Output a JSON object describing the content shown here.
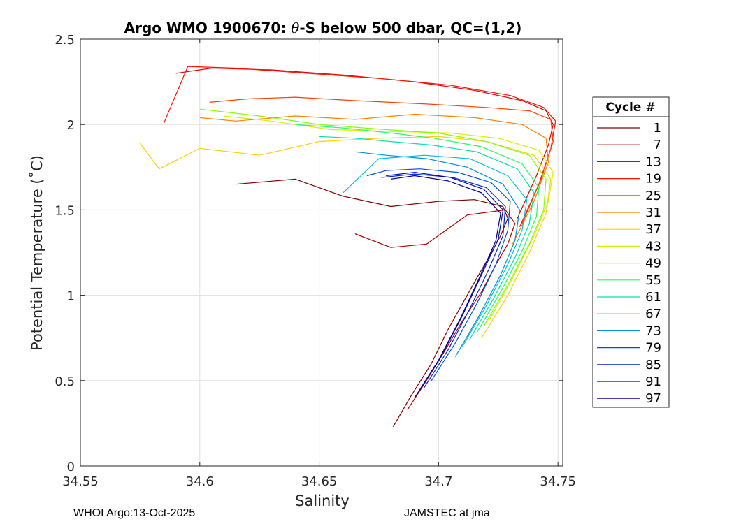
{
  "chart_data": {
    "type": "line",
    "title_pre": "Argo WMO 1900670: ",
    "title_theta": "θ",
    "title_post": "-S below 500 dbar,  QC=(1,2)",
    "xlabel": "Salinity",
    "ylabel": "Potential Temperature (˚C)",
    "xlim": [
      34.55,
      34.752
    ],
    "ylim": [
      0,
      2.5
    ],
    "xticks": [
      34.55,
      34.6,
      34.65,
      34.7,
      34.75
    ],
    "xtick_labels": [
      "34.55",
      "34.6",
      "34.65",
      "34.7",
      "34.75"
    ],
    "yticks": [
      0,
      0.5,
      1,
      1.5,
      2,
      2.5
    ],
    "ytick_labels": [
      "0",
      "0.5",
      "1",
      "1.5",
      "2",
      "2.5"
    ],
    "grid": true,
    "legend_title": "Cycle #",
    "legend_position": "right",
    "series": [
      {
        "name": "1",
        "color": "#800000",
        "salinity": [
          34.681,
          34.688,
          34.697,
          34.704,
          34.71,
          34.716,
          34.721,
          34.726,
          34.729,
          34.727,
          34.715,
          34.7,
          34.68,
          34.66,
          34.64,
          34.615
        ],
        "theta": [
          0.23,
          0.4,
          0.6,
          0.8,
          0.95,
          1.1,
          1.22,
          1.35,
          1.45,
          1.52,
          1.56,
          1.55,
          1.52,
          1.58,
          1.68,
          1.65
        ]
      },
      {
        "name": "7",
        "color": "#B00000",
        "salinity": [
          34.687,
          34.694,
          34.702,
          34.71,
          34.718,
          34.724,
          34.729,
          34.732,
          34.728,
          34.712,
          34.695,
          34.68,
          34.665
        ],
        "theta": [
          0.33,
          0.48,
          0.66,
          0.85,
          1.02,
          1.18,
          1.3,
          1.42,
          1.5,
          1.47,
          1.3,
          1.28,
          1.36
        ]
      },
      {
        "name": "13",
        "color": "#E00000",
        "salinity": [
          34.733,
          34.741,
          34.746,
          34.748,
          34.745,
          34.735,
          34.715,
          34.69,
          34.66,
          34.63,
          34.605,
          34.59
        ],
        "theta": [
          1.45,
          1.7,
          1.88,
          2.0,
          2.08,
          2.14,
          2.2,
          2.25,
          2.29,
          2.32,
          2.33,
          2.3
        ]
      },
      {
        "name": "19",
        "color": "#FF1000",
        "salinity": [
          34.734,
          34.742,
          34.747,
          34.749,
          34.744,
          34.73,
          34.705,
          34.675,
          34.645,
          34.615,
          34.595,
          34.585
        ],
        "theta": [
          1.4,
          1.65,
          1.86,
          2.02,
          2.1,
          2.17,
          2.23,
          2.27,
          2.3,
          2.33,
          2.34,
          2.01
        ]
      },
      {
        "name": "25",
        "color": "#FF4000",
        "salinity": [
          34.735,
          34.743,
          34.748,
          34.747,
          34.738,
          34.72,
          34.695,
          34.665,
          34.64,
          34.62,
          34.604
        ],
        "theta": [
          1.42,
          1.68,
          1.9,
          2.03,
          2.08,
          2.1,
          2.12,
          2.14,
          2.16,
          2.15,
          2.13
        ]
      },
      {
        "name": "31",
        "color": "#FF8000",
        "salinity": [
          34.731,
          34.74,
          34.746,
          34.745,
          34.735,
          34.715,
          34.69,
          34.665,
          34.64,
          34.615,
          34.6
        ],
        "theta": [
          1.3,
          1.55,
          1.78,
          1.92,
          2.0,
          2.04,
          2.06,
          2.03,
          2.05,
          2.02,
          2.04
        ]
      },
      {
        "name": "37",
        "color": "#FFD000",
        "salinity": [
          34.718,
          34.729,
          34.738,
          34.745,
          34.747,
          34.74,
          34.72,
          34.7,
          34.675,
          34.65,
          34.625,
          34.6,
          34.583,
          34.575
        ],
        "theta": [
          0.75,
          1.0,
          1.25,
          1.48,
          1.68,
          1.82,
          1.9,
          1.93,
          1.92,
          1.9,
          1.82,
          1.86,
          1.74,
          1.89
        ]
      },
      {
        "name": "43",
        "color": "#D8F000",
        "salinity": [
          34.721,
          34.731,
          34.74,
          34.746,
          34.748,
          34.742,
          34.725,
          34.705,
          34.68,
          34.655,
          34.63,
          34.61
        ],
        "theta": [
          0.85,
          1.1,
          1.35,
          1.55,
          1.72,
          1.85,
          1.92,
          1.95,
          1.96,
          1.97,
          2.02,
          2.05
        ]
      },
      {
        "name": "49",
        "color": "#80FF00",
        "salinity": [
          34.719,
          34.729,
          34.738,
          34.744,
          34.745,
          34.738,
          34.72,
          34.7,
          34.678,
          34.65,
          34.625,
          34.6
        ],
        "theta": [
          0.82,
          1.06,
          1.3,
          1.5,
          1.68,
          1.82,
          1.9,
          1.95,
          1.97,
          2.0,
          2.05,
          2.09
        ]
      },
      {
        "name": "55",
        "color": "#20FF60",
        "salinity": [
          34.716,
          34.726,
          34.735,
          34.741,
          34.742,
          34.735,
          34.718,
          34.698,
          34.68,
          34.66,
          34.64
        ],
        "theta": [
          0.78,
          1.02,
          1.26,
          1.46,
          1.63,
          1.77,
          1.87,
          1.92,
          1.95,
          1.98,
          2.0
        ]
      },
      {
        "name": "61",
        "color": "#00E0B0",
        "salinity": [
          34.713,
          34.723,
          34.732,
          34.738,
          34.74,
          34.733,
          34.716,
          34.697,
          34.68,
          34.665,
          34.65
        ],
        "theta": [
          0.74,
          0.98,
          1.22,
          1.42,
          1.6,
          1.74,
          1.84,
          1.88,
          1.9,
          1.92,
          1.93
        ]
      },
      {
        "name": "67",
        "color": "#00C0E8",
        "salinity": [
          34.71,
          34.72,
          34.729,
          34.735,
          34.737,
          34.729,
          34.713,
          34.694,
          34.675,
          34.66
        ],
        "theta": [
          0.7,
          0.94,
          1.18,
          1.38,
          1.56,
          1.7,
          1.8,
          1.82,
          1.8,
          1.6
        ]
      },
      {
        "name": "73",
        "color": "#0090D8",
        "salinity": [
          34.707,
          34.717,
          34.726,
          34.732,
          34.734,
          34.727,
          34.712,
          34.695,
          34.678,
          34.665
        ],
        "theta": [
          0.64,
          0.88,
          1.12,
          1.32,
          1.5,
          1.65,
          1.75,
          1.8,
          1.82,
          1.84
        ]
      },
      {
        "name": "79",
        "color": "#0050E0",
        "salinity": [
          34.697,
          34.707,
          34.716,
          34.724,
          34.729,
          34.73,
          34.722,
          34.708,
          34.692,
          34.678,
          34.67
        ],
        "theta": [
          0.5,
          0.72,
          0.95,
          1.18,
          1.38,
          1.55,
          1.66,
          1.72,
          1.74,
          1.73,
          1.7
        ]
      },
      {
        "name": "85",
        "color": "#0028D0",
        "salinity": [
          34.694,
          34.704,
          34.713,
          34.721,
          34.727,
          34.728,
          34.72,
          34.706,
          34.69,
          34.676
        ],
        "theta": [
          0.46,
          0.68,
          0.92,
          1.15,
          1.35,
          1.52,
          1.63,
          1.69,
          1.71,
          1.69
        ]
      },
      {
        "name": "91",
        "color": "#0010B0",
        "salinity": [
          34.691,
          34.701,
          34.71,
          34.718,
          34.725,
          34.727,
          34.719,
          34.705,
          34.69,
          34.678
        ],
        "theta": [
          0.42,
          0.64,
          0.88,
          1.12,
          1.33,
          1.5,
          1.62,
          1.69,
          1.72,
          1.7
        ]
      },
      {
        "name": "97",
        "color": "#000090",
        "salinity": [
          34.69,
          34.7,
          34.709,
          34.717,
          34.724,
          34.726,
          34.718,
          34.704,
          34.69,
          34.68
        ],
        "theta": [
          0.4,
          0.62,
          0.86,
          1.1,
          1.32,
          1.48,
          1.6,
          1.67,
          1.7,
          1.68
        ]
      }
    ]
  },
  "footer": {
    "left": "WHOI Argo:13-Oct-2025",
    "right": "JAMSTEC at jma"
  }
}
